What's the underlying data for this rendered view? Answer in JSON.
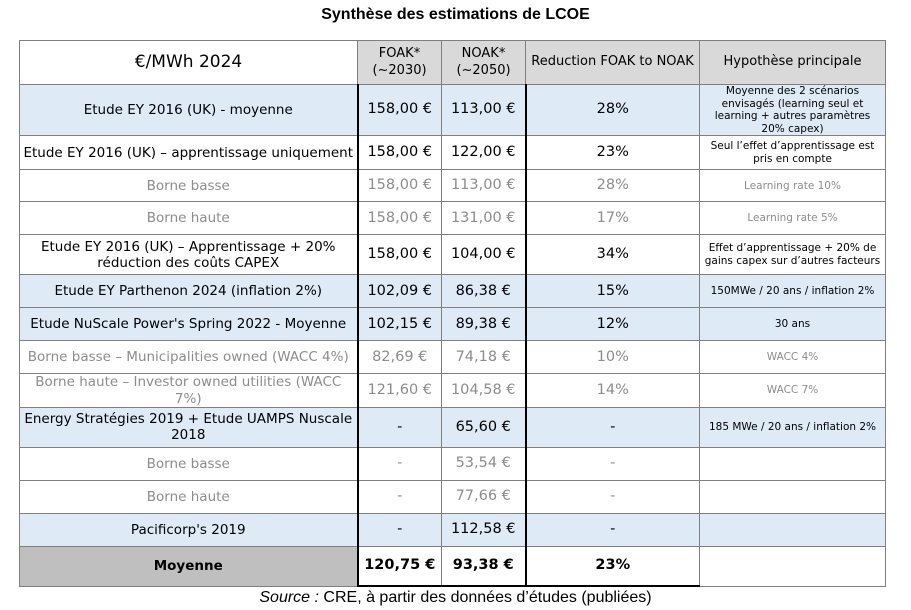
{
  "title": "Synthèse des estimations de LCOE",
  "header": {
    "unit": "€/MWh 2024",
    "foak": "FOAK*\n(~2030)",
    "noak": "NOAK*\n(~2050)",
    "reduction": "Reduction FOAK to NOAK",
    "hypothesis": "Hypothèse principale"
  },
  "rows": [
    {
      "label": "Etude EY 2016 (UK) - moyenne",
      "foak": "158,00 €",
      "noak": "113,00 €",
      "reduction": "28%",
      "hypothesis": "Moyenne des 2 scénarios envisagés (learning seul et learning + autres paramètres 20% capex)"
    },
    {
      "label": "Etude EY 2016 (UK) – apprentissage uniquement",
      "foak": "158,00 €",
      "noak": "122,00 €",
      "reduction": "23%",
      "hypothesis": "Seul l’effet d’apprentissage est pris en compte"
    },
    {
      "label": "Borne basse",
      "foak": "158,00 €",
      "noak": "113,00 €",
      "reduction": "28%",
      "hypothesis": "Learning rate 10%"
    },
    {
      "label": "Borne haute",
      "foak": "158,00 €",
      "noak": "131,00 €",
      "reduction": "17%",
      "hypothesis": "Learning rate 5%"
    },
    {
      "label": "Etude EY 2016 (UK) – Apprentissage + 20% réduction des coûts CAPEX",
      "foak": "158,00 €",
      "noak": "104,00 €",
      "reduction": "34%",
      "hypothesis": "Effet d’apprentissage + 20% de gains capex sur d’autres facteurs"
    },
    {
      "label": "Etude EY Parthenon 2024 (inflation 2%)",
      "foak": "102,09 €",
      "noak": "86,38 €",
      "reduction": "15%",
      "hypothesis": "150MWe / 20 ans / inflation 2%"
    },
    {
      "label": "Etude NuScale Power's Spring 2022 - Moyenne",
      "foak": "102,15 €",
      "noak": "89,38 €",
      "reduction": "12%",
      "hypothesis": "30 ans"
    },
    {
      "label": "Borne basse – Municipalities owned (WACC 4%)",
      "foak": "82,69 €",
      "noak": "74,18 €",
      "reduction": "10%",
      "hypothesis": "WACC 4%"
    },
    {
      "label": "Borne haute – Investor owned utilities (WACC 7%)",
      "foak": "121,60 €",
      "noak": "104,58 €",
      "reduction": "14%",
      "hypothesis": "WACC 7%"
    },
    {
      "label": "Energy Stratégies 2019 + Etude UAMPS Nuscale 2018",
      "foak": "-",
      "noak": "65,60 €",
      "reduction": "-",
      "hypothesis": "185 MWe / 20 ans / inflation 2%"
    },
    {
      "label": "Borne basse",
      "foak": "-",
      "noak": "53,54 €",
      "reduction": "-",
      "hypothesis": ""
    },
    {
      "label": "Borne haute",
      "foak": "-",
      "noak": "77,66 €",
      "reduction": "-",
      "hypothesis": ""
    },
    {
      "label": "Pacificorp's 2019",
      "foak": "-",
      "noak": "112,58 €",
      "reduction": "-",
      "hypothesis": ""
    }
  ],
  "average": {
    "label": "Moyenne",
    "foak": "120,75 €",
    "noak": "93,38 €",
    "reduction": "23%",
    "hypothesis": ""
  },
  "source": {
    "prefix": "Source :",
    "text": " CRE, à partir des données d’études (publiées)"
  }
}
